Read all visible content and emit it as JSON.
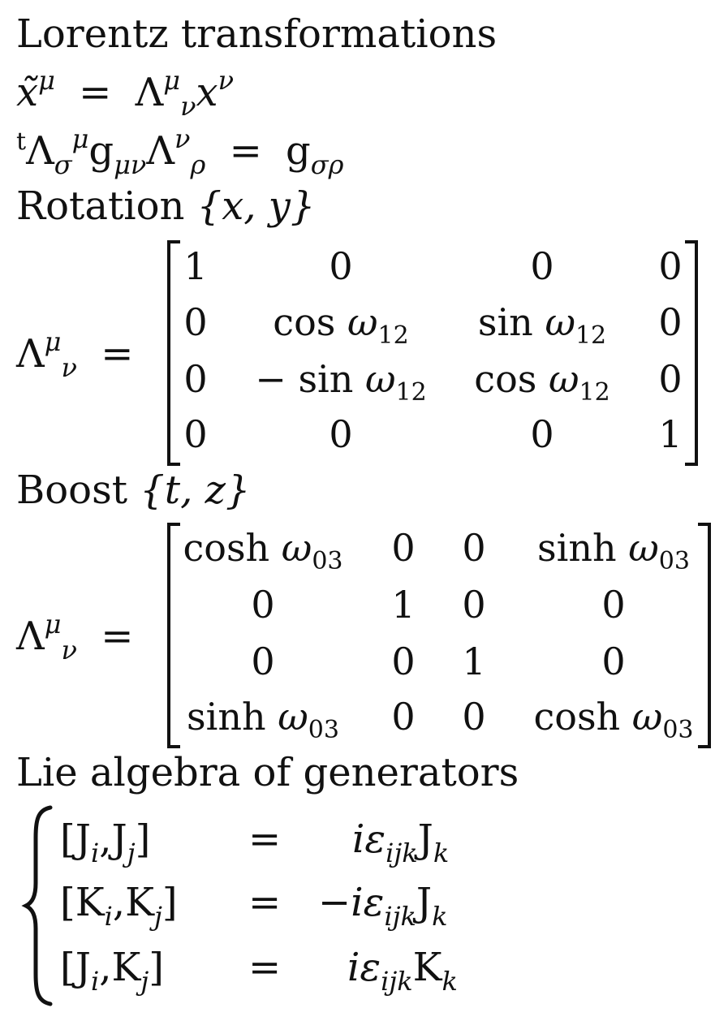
{
  "headings": {
    "title": "Lorentz transformations",
    "rotation": "Rotation",
    "boost": "Boost",
    "lie": "Lie algebra of generators"
  },
  "equations": {
    "transform": {
      "lhs_base": "x̃",
      "lhs_sup": "μ",
      "eq": "=",
      "rhs_base": "Λ",
      "rhs_sup": "μ",
      "rhs_sub": "ν",
      "rhs_var": "x",
      "rhs_var_sup": "ν"
    },
    "metric": {
      "pre_sup": "t",
      "l1": "Λ",
      "l1_sub": "σ",
      "l1_sup": "μ",
      "g": "g",
      "g_sub": "μν",
      "l2": "Λ",
      "l2_sup": "ν",
      "l2_sub": "ρ",
      "eq": "=",
      "rhs": "g",
      "rhs_sub": "σρ"
    },
    "rotation_vars": "{x, y}",
    "boost_vars": "{t, z}",
    "matrix_lhs": {
      "base": "Λ",
      "sup": "μ",
      "sub": "ν",
      "eq": "="
    }
  },
  "rotation_matrix": [
    [
      "1",
      "0",
      "0",
      "0"
    ],
    [
      "0",
      "cos ω",
      "sin ω",
      "0"
    ],
    [
      "0",
      "− sin ω",
      "cos ω",
      "0"
    ],
    [
      "0",
      "0",
      "0",
      "1"
    ]
  ],
  "rotation_subscript": "12",
  "boost_matrix": [
    [
      "cosh ω",
      "0",
      "0",
      "sinh ω"
    ],
    [
      "0",
      "1",
      "0",
      "0"
    ],
    [
      "0",
      "0",
      "1",
      "0"
    ],
    [
      "sinh ω",
      "0",
      "0",
      "cosh ω"
    ]
  ],
  "boost_subscript": "03",
  "commutators": [
    {
      "lhs": "[J",
      "a_sub": "i",
      "mid": ",J",
      "b_sub": "j",
      "close": "]",
      "eq": "=",
      "rhs_pre": "iε",
      "rhs_sub": "ijk",
      "rhs_op": "J",
      "rhs_op_sub": "k"
    },
    {
      "lhs": "[K",
      "a_sub": "i",
      "mid": ",K",
      "b_sub": "j",
      "close": "]",
      "eq": "=",
      "rhs_pre": "−iε",
      "rhs_sub": "ijk",
      "rhs_op": "J",
      "rhs_op_sub": "k"
    },
    {
      "lhs": "[J",
      "a_sub": "i",
      "mid": ",K",
      "b_sub": "j",
      "close": "]",
      "eq": "=",
      "rhs_pre": "iε",
      "rhs_sub": "ijk",
      "rhs_op": "K",
      "rhs_op_sub": "k"
    }
  ]
}
